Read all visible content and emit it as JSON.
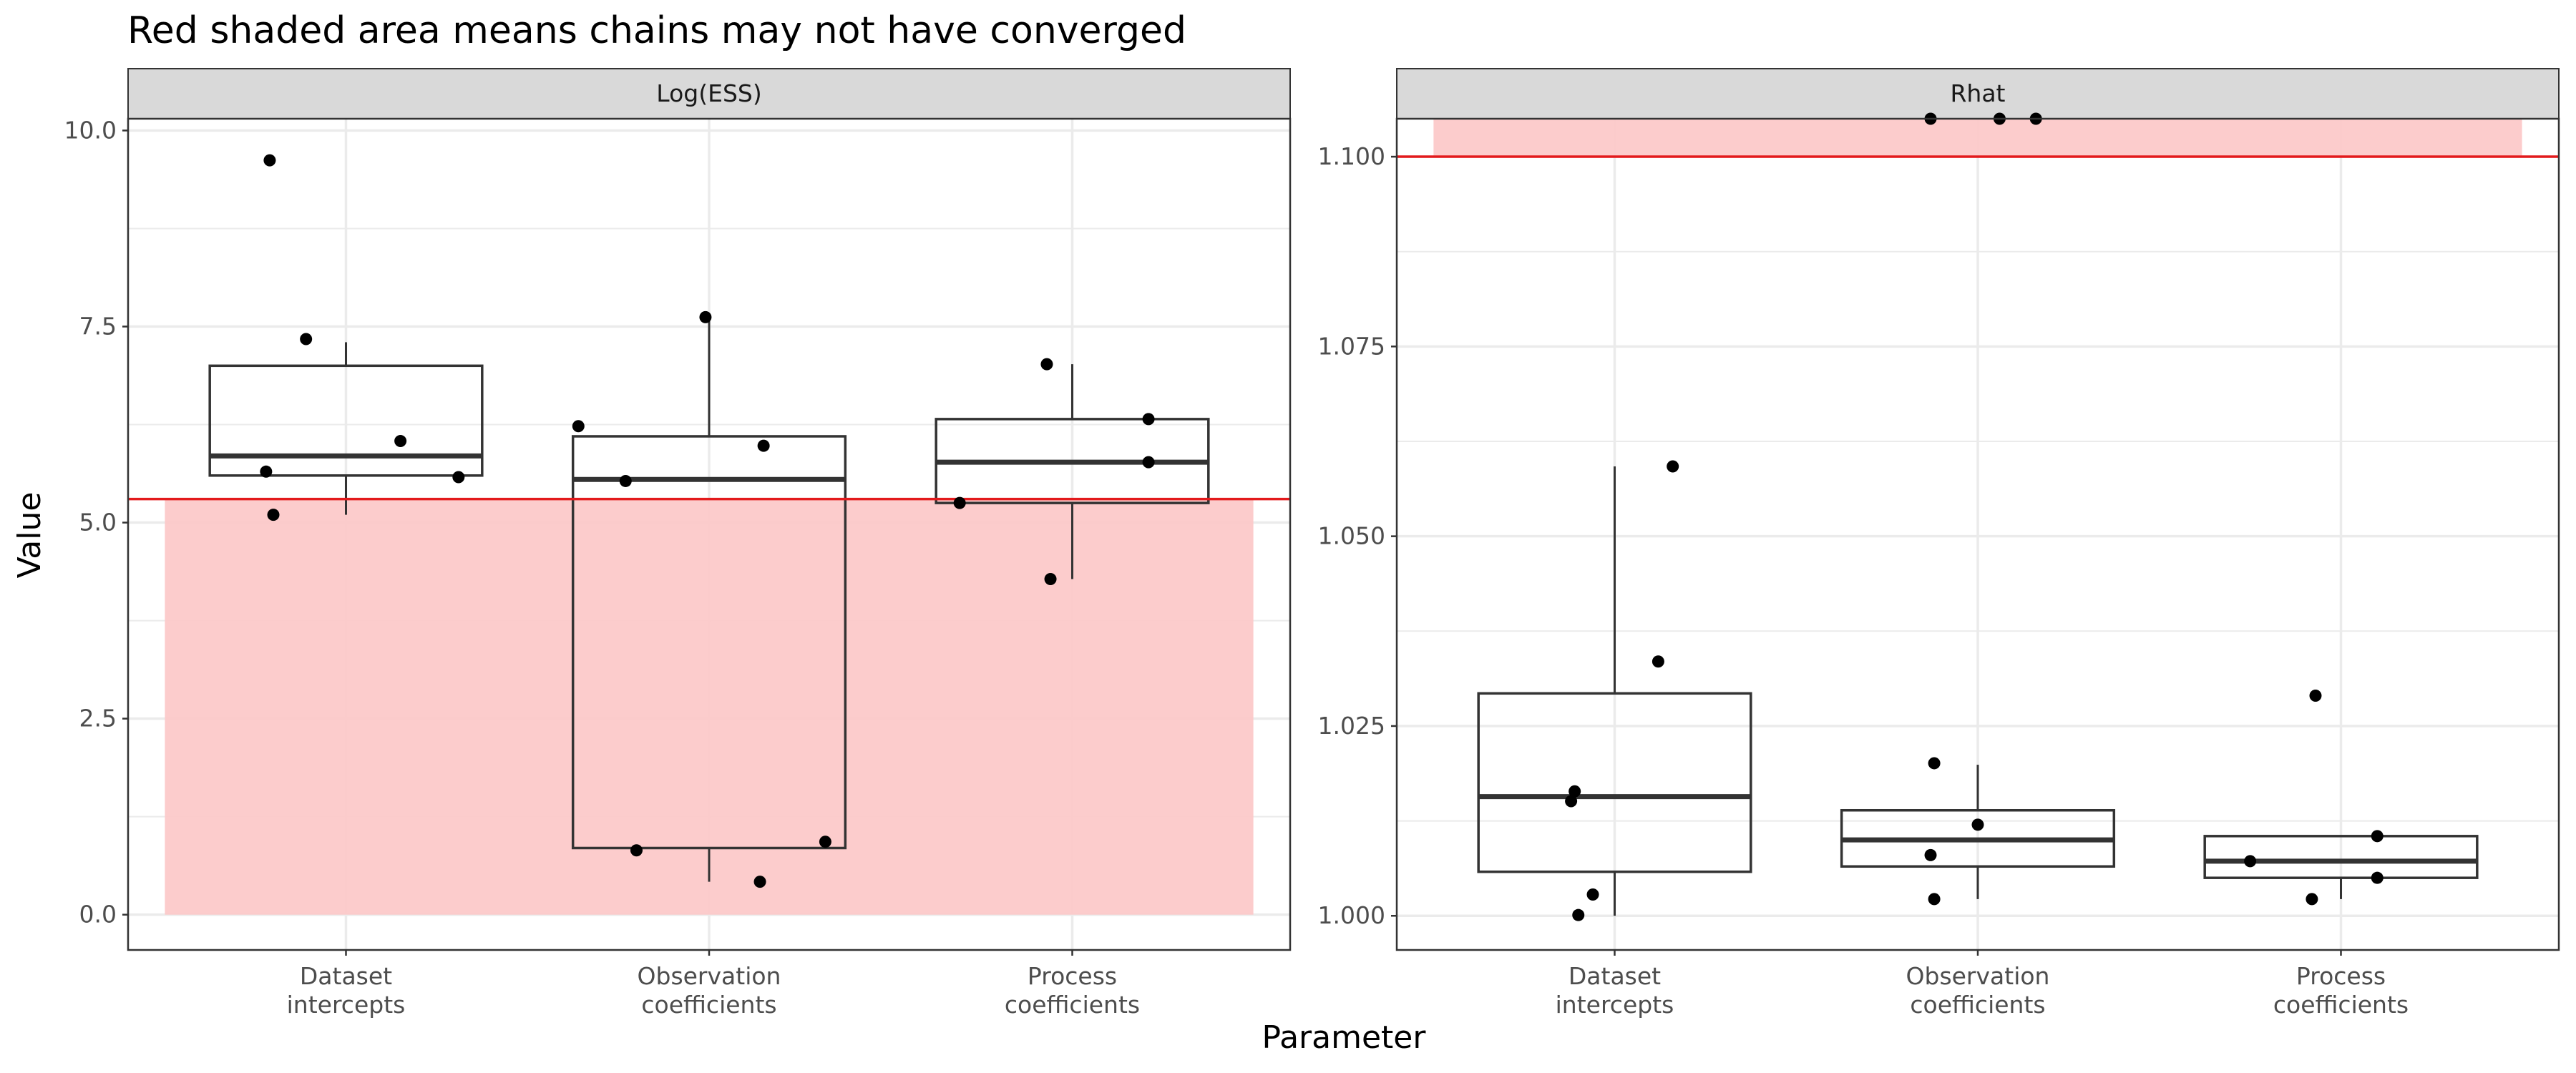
{
  "title": "Red shaded area means chains may not have converged",
  "xlabel": "Parameter",
  "ylabel": "Value",
  "colors": {
    "shade": "#fcc9c9",
    "threshold": "#e31a1c",
    "box": "#333333",
    "point": "#000000",
    "strip_bg": "#d9d9d9",
    "grid": "#ebebeb"
  },
  "chart_data": [
    {
      "type": "box",
      "panel": "Log(ESS)",
      "categories": [
        "Dataset\nintercepts",
        "Observation\ncoefficients",
        "Process\ncoefficients"
      ],
      "ylim": [
        -0.45,
        10.15
      ],
      "yticks": [
        0.0,
        2.5,
        5.0,
        7.5,
        10.0
      ],
      "ytick_labels": [
        "0.0",
        "2.5",
        "5.0",
        "7.5",
        "10.0"
      ],
      "threshold": 5.3,
      "shaded_region": "below",
      "grid": true,
      "boxes": [
        {
          "whisker_low": 5.1,
          "q1": 5.6,
          "median": 5.85,
          "q3": 7.0,
          "whisker_high": 7.3
        },
        {
          "whisker_low": 0.42,
          "q1": 0.85,
          "median": 5.55,
          "q3": 6.1,
          "whisker_high": 7.62
        },
        {
          "whisker_low": 4.28,
          "q1": 5.25,
          "median": 5.77,
          "q3": 6.32,
          "whisker_high": 7.02
        }
      ],
      "points": [
        [
          {
            "x": -0.2,
            "y": 5.1
          },
          {
            "x": -0.21,
            "y": 9.62
          },
          {
            "x": -0.11,
            "y": 7.34
          },
          {
            "x": 0.15,
            "y": 6.04
          },
          {
            "x": -0.22,
            "y": 5.65
          },
          {
            "x": 0.31,
            "y": 5.58
          }
        ],
        [
          {
            "x": -0.36,
            "y": 6.23
          },
          {
            "x": -0.23,
            "y": 5.53
          },
          {
            "x": -0.2,
            "y": 0.82
          },
          {
            "x": -0.01,
            "y": 7.62
          },
          {
            "x": 0.15,
            "y": 5.98
          },
          {
            "x": 0.14,
            "y": 0.42
          },
          {
            "x": 0.32,
            "y": 0.93
          }
        ],
        [
          {
            "x": -0.31,
            "y": 5.25
          },
          {
            "x": -0.07,
            "y": 7.02
          },
          {
            "x": 0.21,
            "y": 6.32
          },
          {
            "x": 0.21,
            "y": 5.77
          },
          {
            "x": -0.06,
            "y": 4.28
          }
        ]
      ]
    },
    {
      "type": "box",
      "panel": "Rhat",
      "categories": [
        "Dataset\nintercepts",
        "Observation\ncoefficients",
        "Process\ncoefficients"
      ],
      "ylim": [
        0.9955,
        1.105
      ],
      "yticks": [
        1.0,
        1.025,
        1.05,
        1.075,
        1.1
      ],
      "ytick_labels": [
        "1.000",
        "1.025",
        "1.050",
        "1.075",
        "1.100"
      ],
      "threshold": 1.1,
      "shaded_region": "above",
      "grid": true,
      "boxes": [
        {
          "whisker_low": 1.0,
          "q1": 1.0058,
          "median": 1.0157,
          "q3": 1.0293,
          "whisker_high": 1.0592
        },
        {
          "whisker_low": 1.0022,
          "q1": 1.0065,
          "median": 1.01,
          "q3": 1.0139,
          "whisker_high": 1.0199
        },
        {
          "whisker_low": 1.0022,
          "q1": 1.005,
          "median": 1.0072,
          "q3": 1.0105,
          "whisker_high": 1.0105
        }
      ],
      "points": [
        [
          {
            "x": -0.1,
            "y": 1.0001
          },
          {
            "x": -0.06,
            "y": 1.0028
          },
          {
            "x": -0.11,
            "y": 1.0164
          },
          {
            "x": -0.12,
            "y": 1.0151
          },
          {
            "x": 0.12,
            "y": 1.0335
          },
          {
            "x": 0.16,
            "y": 1.0592
          }
        ],
        [
          {
            "x": -0.13,
            "y": 1.008
          },
          {
            "x": -0.12,
            "y": 1.0022
          },
          {
            "x": -0.12,
            "y": 1.0201
          },
          {
            "x": 0.0,
            "y": 1.012
          },
          {
            "x": -0.13,
            "y": 1.105
          },
          {
            "x": 0.06,
            "y": 1.105
          },
          {
            "x": 0.16,
            "y": 1.105
          }
        ],
        [
          {
            "x": -0.25,
            "y": 1.0072
          },
          {
            "x": -0.08,
            "y": 1.0022
          },
          {
            "x": -0.07,
            "y": 1.029
          },
          {
            "x": 0.1,
            "y": 1.0105
          },
          {
            "x": 0.1,
            "y": 1.005
          }
        ]
      ]
    }
  ]
}
